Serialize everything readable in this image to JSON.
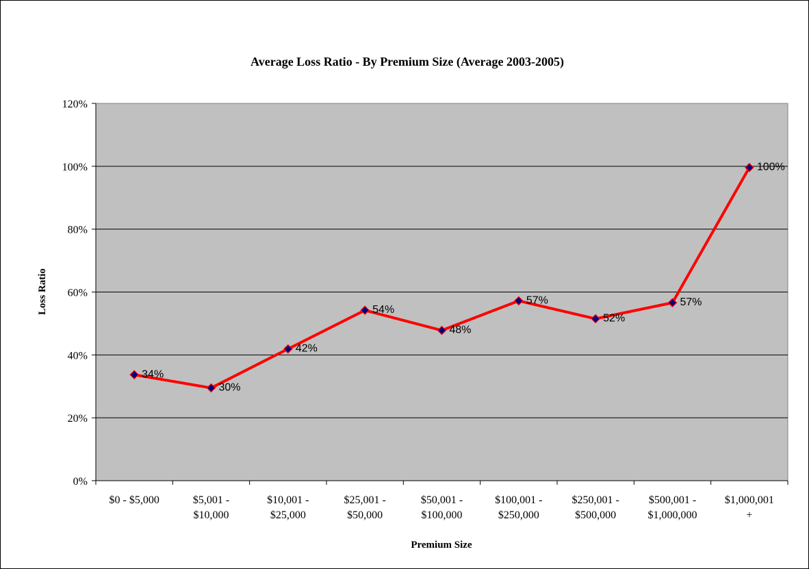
{
  "chart_data": {
    "type": "line",
    "title": "Average Loss Ratio - By Premium Size (Average 2003-2005)",
    "xlabel": "Premium Size",
    "ylabel": "Loss Ratio",
    "categories": [
      [
        "$0 - $5,000"
      ],
      [
        "$5,001 -",
        "$10,000"
      ],
      [
        "$10,001 -",
        "$25,000"
      ],
      [
        "$25,001 -",
        "$50,000"
      ],
      [
        "$50,001 -",
        "$100,000"
      ],
      [
        "$100,001 -",
        "$250,000"
      ],
      [
        "$250,001 -",
        "$500,000"
      ],
      [
        "$500,001 -",
        "$1,000,000"
      ],
      [
        "$1,000,001",
        "+"
      ]
    ],
    "values": [
      0.337,
      0.295,
      0.419,
      0.542,
      0.478,
      0.572,
      0.515,
      0.566,
      0.996
    ],
    "data_labels": [
      "34%",
      "30%",
      "42%",
      "54%",
      "48%",
      "57%",
      "52%",
      "57%",
      "100%"
    ],
    "yticks": [
      "0%",
      "20%",
      "40%",
      "60%",
      "80%",
      "100%",
      "120%"
    ],
    "ylim": [
      0,
      1.2
    ],
    "grid": true,
    "legend": "none",
    "colors": {
      "plot_bg": "#c0c0c0",
      "line": "#ff0000",
      "marker_fill": "#000080",
      "marker_edge": "#ff0000"
    }
  }
}
